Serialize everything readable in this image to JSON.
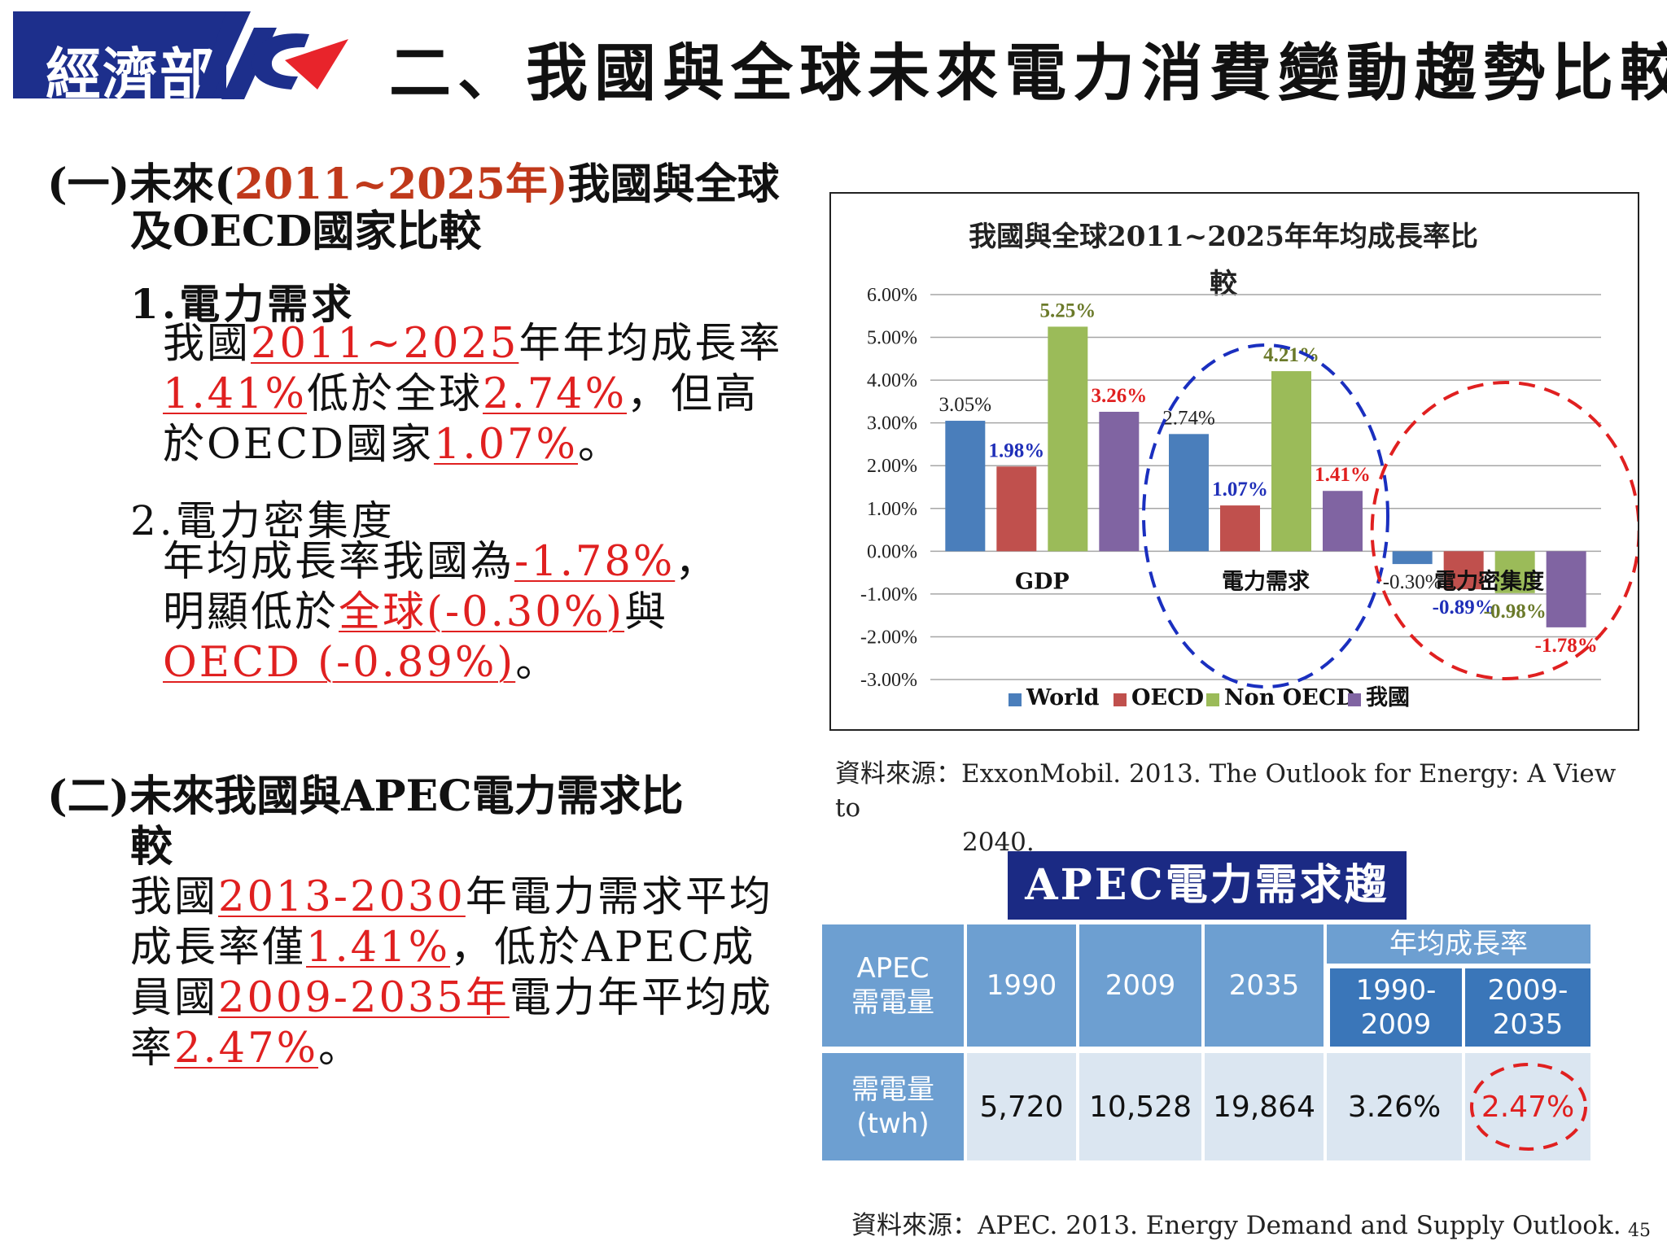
{
  "header": {
    "logo_text": "經濟部",
    "title": "二、我國與全球未來電力消費變動趨勢比較"
  },
  "section1": {
    "heading_pre": "(一)未來(",
    "heading_hl": "2011~2025年)",
    "heading_post": "我國與全球",
    "heading_line2": "及OECD國家比較",
    "item1": {
      "title": "1.電力需求",
      "l1_a": "我國",
      "l1_b": "2011~2025",
      "l1_c": "年年均成長率",
      "l2_a": "1.41%",
      "l2_b": "低於全球",
      "l2_c": "2.74%",
      "l2_d": "，但高",
      "l3_a": "於OECD國家",
      "l3_b": "1.07%",
      "l3_c": "。"
    },
    "item2": {
      "title": "2.電力密集度",
      "l1_a": "年均成長率我國為",
      "l1_b": "-1.78%",
      "l1_c": "，",
      "l2_a": "明顯低於",
      "l2_b": "全球(-0.30%)",
      "l2_c": "與",
      "l3_a": "OECD (-0.89%)",
      "l3_b": "。"
    }
  },
  "section2": {
    "heading": "(二)未來我國與APEC電力需求比",
    "heading_line2": "較",
    "l1_a": "我國",
    "l1_b": "2013-2030",
    "l1_c": "年電力需求平均",
    "l2_a": "成長率僅",
    "l2_b": "1.41%",
    "l2_c": "，低於APEC成",
    "l3_a": "員國",
    "l3_b": "2009-2035年",
    "l3_c": "電力年平均成",
    "l4_a": "率",
    "l4_b": "2.47%",
    "l4_c": "。"
  },
  "chart_data": {
    "type": "bar",
    "title_line1": "我國與全球2011~2025年年均成長率比",
    "title_line2": "較",
    "categories": [
      "GDP",
      "電力需求",
      "電力密集度"
    ],
    "series": [
      {
        "name": "World",
        "color": "#4a7ebb",
        "values": [
          3.05,
          2.74,
          -0.3
        ],
        "labels": [
          "3.05%",
          "2.74%",
          "-0.30%"
        ],
        "label_colors": [
          "#222222",
          "#222222",
          "#222222"
        ]
      },
      {
        "name": "OECD",
        "color": "#c0504d",
        "values": [
          1.98,
          1.07,
          -0.89
        ],
        "labels": [
          "1.98%",
          "1.07%",
          "-0.89%"
        ],
        "label_colors": [
          "#1f2fb8",
          "#1f2fb8",
          "#1f2fb8"
        ]
      },
      {
        "name": "Non OECD",
        "color": "#9bbb59",
        "values": [
          5.25,
          4.21,
          -0.98
        ],
        "labels": [
          "5.25%",
          "4.21%",
          "-0.98%"
        ],
        "label_colors": [
          "#6b7a2a",
          "#6b7a2a",
          "#6b7a2a"
        ]
      },
      {
        "name": "我國",
        "color": "#8064a2",
        "values": [
          3.26,
          1.41,
          -1.78
        ],
        "labels": [
          "3.26%",
          "1.41%",
          "-1.78%"
        ],
        "label_colors": [
          "#e02020",
          "#e02020",
          "#e02020"
        ]
      }
    ],
    "ylim": [
      -3,
      6
    ],
    "yticks": [
      "6.00%",
      "5.00%",
      "4.00%",
      "3.00%",
      "2.00%",
      "1.00%",
      "0.00%",
      "-1.00%",
      "-2.00%",
      "-3.00%"
    ],
    "grid": true,
    "legend_position": "bottom",
    "highlight_circles": [
      "電力需求",
      "電力密集度"
    ]
  },
  "source1": {
    "line1": "資料來源：ExxonMobil. 2013. The Outlook for Energy: A View to",
    "line2": "2040."
  },
  "apec": {
    "title": "APEC電力需求趨勢",
    "row_header_l1": "APEC",
    "row_header_l2": "需電量",
    "years": [
      "1990",
      "2009",
      "2035"
    ],
    "growth_header": "年均成長率",
    "growth_periods": [
      {
        "l1": "1990-",
        "l2": "2009"
      },
      {
        "l1": "2009-",
        "l2": "2035"
      }
    ],
    "row_label_l1": "需電量",
    "row_label_l2": "(twh)",
    "values": [
      "5,720",
      "10,528",
      "19,864",
      "3.26%",
      "2.47%"
    ],
    "highlight_color": "#e02020"
  },
  "source2": "資料來源：APEC. 2013. Energy Demand and Supply Outlook.",
  "page_number": "45"
}
